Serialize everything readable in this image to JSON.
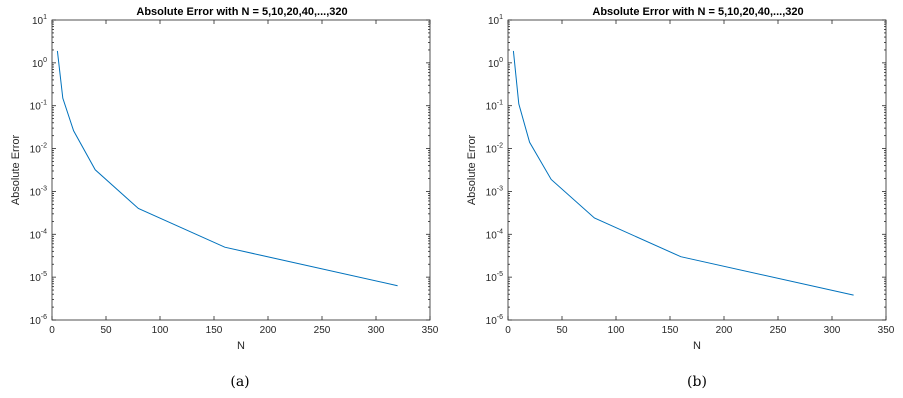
{
  "chart_data": [
    {
      "type": "line",
      "title": "Absolute Error with N = 5,10,20,40,...,320",
      "xlabel": "N",
      "ylabel": "Absolute Error",
      "caption": "(a)",
      "xscale": "linear",
      "yscale": "log",
      "xlim": [
        0,
        350
      ],
      "ylim": [
        1e-06,
        10
      ],
      "xticks": [
        0,
        50,
        100,
        150,
        200,
        250,
        300,
        350
      ],
      "yticks": [
        {
          "value": 1e-06,
          "base": "10",
          "exp": "-6"
        },
        {
          "value": 1e-05,
          "base": "10",
          "exp": "-5"
        },
        {
          "value": 0.0001,
          "base": "10",
          "exp": "-4"
        },
        {
          "value": 0.001,
          "base": "10",
          "exp": "-3"
        },
        {
          "value": 0.01,
          "base": "10",
          "exp": "-2"
        },
        {
          "value": 0.1,
          "base": "10",
          "exp": "-1"
        },
        {
          "value": 1,
          "base": "10",
          "exp": "0"
        },
        {
          "value": 10,
          "base": "10",
          "exp": "1"
        }
      ],
      "grid": false,
      "series": [
        {
          "color": "#0072bd",
          "x": [
            5,
            10,
            20,
            40,
            80,
            160,
            320
          ],
          "y": [
            1.9,
            0.15,
            0.026,
            0.0032,
            0.0004,
            5e-05,
            6.3e-06
          ]
        }
      ]
    },
    {
      "type": "line",
      "title": "Absolute Error with N = 5,10,20,40,...,320",
      "xlabel": "N",
      "ylabel": "Absolute Error",
      "caption": "(b)",
      "xscale": "linear",
      "yscale": "log",
      "xlim": [
        0,
        350
      ],
      "ylim": [
        1e-06,
        10
      ],
      "xticks": [
        0,
        50,
        100,
        150,
        200,
        250,
        300,
        350
      ],
      "yticks": [
        {
          "value": 1e-06,
          "base": "10",
          "exp": "-6"
        },
        {
          "value": 1e-05,
          "base": "10",
          "exp": "-5"
        },
        {
          "value": 0.0001,
          "base": "10",
          "exp": "-4"
        },
        {
          "value": 0.001,
          "base": "10",
          "exp": "-3"
        },
        {
          "value": 0.01,
          "base": "10",
          "exp": "-2"
        },
        {
          "value": 0.1,
          "base": "10",
          "exp": "-1"
        },
        {
          "value": 1,
          "base": "10",
          "exp": "0"
        },
        {
          "value": 10,
          "base": "10",
          "exp": "1"
        }
      ],
      "grid": false,
      "series": [
        {
          "color": "#0072bd",
          "x": [
            5,
            10,
            20,
            40,
            80,
            160,
            320
          ],
          "y": [
            1.9,
            0.11,
            0.014,
            0.0019,
            0.00024,
            3e-05,
            3.8e-06
          ]
        }
      ]
    }
  ]
}
